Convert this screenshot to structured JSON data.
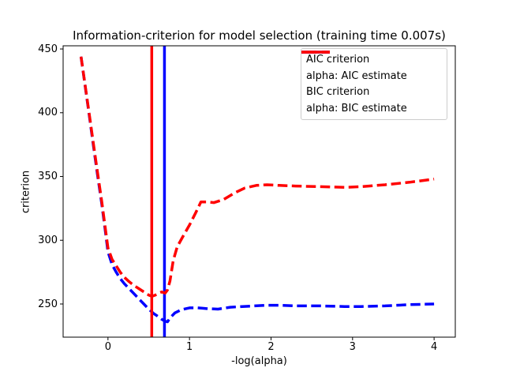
{
  "chart_data": {
    "type": "line",
    "title": "Information-criterion for model selection (training time 0.007s)",
    "xlabel": "-log(alpha)",
    "ylabel": "criterion",
    "xlim": [
      -0.55,
      4.26
    ],
    "ylim": [
      224,
      452.5
    ],
    "x_ticks": [
      0,
      1,
      2,
      3,
      4
    ],
    "y_ticks": [
      250,
      300,
      350,
      400,
      450
    ],
    "grid": false,
    "legend_position": "upper right",
    "legend_border_color": "#cccccc",
    "axis_color": "#000000",
    "series": [
      {
        "name": "AIC criterion",
        "color": "#0000ff",
        "style": "dashed",
        "points": [
          [
            -0.33,
            444
          ],
          [
            -0.28,
            421
          ],
          [
            -0.23,
            398
          ],
          [
            -0.18,
            375
          ],
          [
            -0.13,
            352
          ],
          [
            -0.08,
            330
          ],
          [
            -0.04,
            311
          ],
          [
            0,
            291
          ],
          [
            0.05,
            281
          ],
          [
            0.1,
            275
          ],
          [
            0.15,
            270
          ],
          [
            0.2,
            266
          ],
          [
            0.26,
            262
          ],
          [
            0.32,
            258
          ],
          [
            0.38,
            254
          ],
          [
            0.44,
            250
          ],
          [
            0.5,
            246
          ],
          [
            0.56,
            242.5
          ],
          [
            0.62,
            240
          ],
          [
            0.66,
            238
          ],
          [
            0.7,
            236.5
          ],
          [
            0.73,
            236
          ],
          [
            0.76,
            239
          ],
          [
            0.82,
            243
          ],
          [
            0.9,
            245.5
          ],
          [
            1,
            247
          ],
          [
            1.1,
            247
          ],
          [
            1.2,
            246.5
          ],
          [
            1.35,
            246
          ],
          [
            1.5,
            247.5
          ],
          [
            1.65,
            248
          ],
          [
            1.8,
            248.5
          ],
          [
            1.95,
            249
          ],
          [
            2.1,
            249
          ],
          [
            2.3,
            248.5
          ],
          [
            2.6,
            248.5
          ],
          [
            2.9,
            248
          ],
          [
            3.1,
            248
          ],
          [
            3.4,
            248.5
          ],
          [
            3.7,
            249.5
          ],
          [
            4,
            250
          ]
        ]
      },
      {
        "name": "alpha: AIC estimate",
        "color": "#0000ff",
        "style": "vline",
        "x": 0.693
      },
      {
        "name": "BIC criterion",
        "color": "#ff0000",
        "style": "dashed",
        "points": [
          [
            -0.33,
            444
          ],
          [
            -0.28,
            421.5
          ],
          [
            -0.23,
            399
          ],
          [
            -0.18,
            376.5
          ],
          [
            -0.13,
            354
          ],
          [
            -0.08,
            332
          ],
          [
            -0.04,
            313
          ],
          [
            0,
            294
          ],
          [
            0.05,
            285
          ],
          [
            0.1,
            280
          ],
          [
            0.15,
            275
          ],
          [
            0.2,
            271
          ],
          [
            0.26,
            267.5
          ],
          [
            0.32,
            264.5
          ],
          [
            0.38,
            262
          ],
          [
            0.44,
            259.5
          ],
          [
            0.5,
            257
          ],
          [
            0.54,
            256
          ],
          [
            0.58,
            257
          ],
          [
            0.62,
            258.5
          ],
          [
            0.66,
            259.5
          ],
          [
            0.7,
            258.5
          ],
          [
            0.73,
            261
          ],
          [
            0.76,
            268
          ],
          [
            0.8,
            284
          ],
          [
            0.85,
            295
          ],
          [
            0.92,
            303
          ],
          [
            1,
            312
          ],
          [
            1.08,
            322
          ],
          [
            1.14,
            330
          ],
          [
            1.22,
            330
          ],
          [
            1.3,
            329.5
          ],
          [
            1.42,
            332
          ],
          [
            1.55,
            337
          ],
          [
            1.68,
            341
          ],
          [
            1.82,
            343
          ],
          [
            1.95,
            343.5
          ],
          [
            2.1,
            343
          ],
          [
            2.3,
            342.5
          ],
          [
            2.6,
            342
          ],
          [
            2.9,
            341.5
          ],
          [
            3.1,
            342
          ],
          [
            3.4,
            343.5
          ],
          [
            3.7,
            345.5
          ],
          [
            4,
            348
          ]
        ]
      },
      {
        "name": "alpha: BIC estimate",
        "color": "#ff0000",
        "style": "vline",
        "x": 0.537
      }
    ]
  }
}
